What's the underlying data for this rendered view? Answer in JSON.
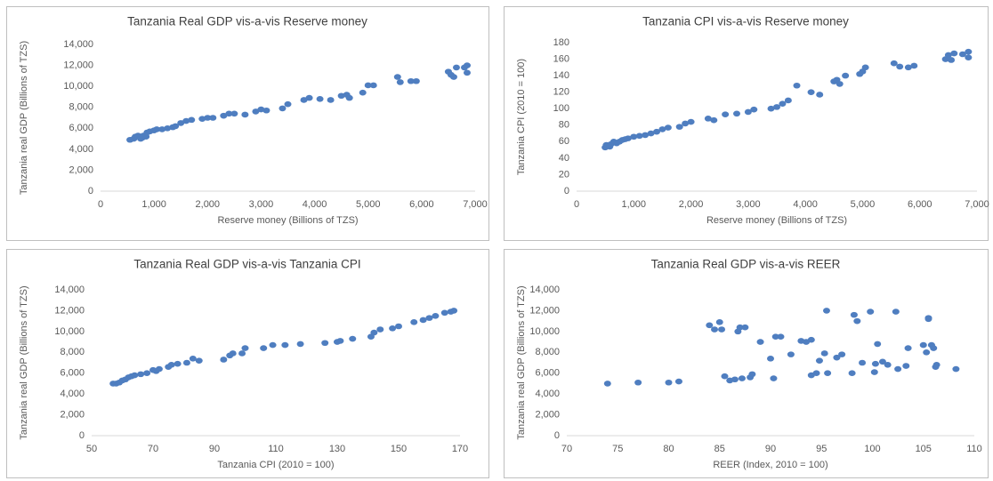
{
  "chart_data": [
    {
      "type": "scatter",
      "title": "Tanzania Real GDP vis-a-vis Reserve money",
      "x_label": "Reserve money (Billions of TZS)",
      "y_label": "Tanzania real GDP (Billions of TZS)",
      "xlim": [
        0,
        7000
      ],
      "ylim": [
        0,
        14000
      ],
      "xticks": [
        0,
        {
          "value": 1000,
          "label": "1,000"
        },
        {
          "value": 2000,
          "label": "2,000"
        },
        {
          "value": 3000,
          "label": "3,000"
        },
        {
          "value": 4000,
          "label": "4,000"
        },
        {
          "value": 5000,
          "label": "5,000"
        },
        {
          "value": 6000,
          "label": "6,000"
        },
        {
          "value": 7000,
          "label": "7,000"
        }
      ],
      "yticks": [
        0,
        {
          "value": 2000,
          "label": "2,000"
        },
        {
          "value": 4000,
          "label": "4,000"
        },
        {
          "value": 6000,
          "label": "6,000"
        },
        {
          "value": 8000,
          "label": "8,000"
        },
        {
          "value": 10000,
          "label": "10,000"
        },
        {
          "value": 12000,
          "label": "12,000"
        },
        {
          "value": 14000,
          "label": "14,000"
        }
      ],
      "series": [
        {
          "color": "#4f7ec0",
          "x": [
            550,
            620,
            650,
            700,
            750,
            780,
            800,
            850,
            870,
            920,
            1000,
            1050,
            1150,
            1250,
            1350,
            1400,
            1500,
            1600,
            1700,
            1900,
            2000,
            2100,
            2300,
            2400,
            2500,
            2700,
            2900,
            3000,
            3100,
            3400,
            3500,
            3800,
            3900,
            4100,
            4300,
            4500,
            4600,
            4650,
            4900,
            5000,
            5100,
            5550,
            5600,
            5800,
            5900,
            6500,
            6550,
            6600,
            6650,
            6800,
            6850,
            6850
          ],
          "values": [
            4900,
            5000,
            5200,
            5300,
            5000,
            5100,
            5300,
            5200,
            5600,
            5700,
            5800,
            5900,
            5900,
            6000,
            6100,
            6200,
            6500,
            6700,
            6800,
            6900,
            7000,
            7000,
            7200,
            7400,
            7400,
            7300,
            7600,
            7800,
            7700,
            7900,
            8300,
            8700,
            8900,
            8800,
            8700,
            9100,
            9200,
            8900,
            9400,
            10100,
            10100,
            10900,
            10400,
            10500,
            10500,
            11400,
            11100,
            10900,
            11800,
            11800,
            12000,
            11300
          ]
        }
      ]
    },
    {
      "type": "scatter",
      "title": "Tanzania CPI vis-a-vis Reserve money",
      "x_label": "Reserve money (Billions of TZS)",
      "y_label": "Tanzania CPI (2010 = 100)",
      "xlim": [
        0,
        7000
      ],
      "ylim": [
        0,
        180
      ],
      "xticks": [
        0,
        {
          "value": 1000,
          "label": "1,000"
        },
        {
          "value": 2000,
          "label": "2,000"
        },
        {
          "value": 3000,
          "label": "3,000"
        },
        {
          "value": 4000,
          "label": "4,000"
        },
        {
          "value": 5000,
          "label": "5,000"
        },
        {
          "value": 6000,
          "label": "6,000"
        },
        {
          "value": 7000,
          "label": "7,000"
        }
      ],
      "yticks": [
        0,
        20,
        40,
        60,
        80,
        100,
        120,
        140,
        160,
        180
      ],
      "series": [
        {
          "color": "#4f7ec0",
          "x": [
            500,
            520,
            550,
            580,
            600,
            650,
            700,
            750,
            800,
            850,
            900,
            1000,
            1100,
            1200,
            1300,
            1400,
            1500,
            1600,
            1800,
            1900,
            2000,
            2300,
            2400,
            2600,
            2800,
            3000,
            3100,
            3400,
            3500,
            3600,
            3700,
            3850,
            4100,
            4250,
            4500,
            4550,
            4600,
            4700,
            4950,
            5000,
            5050,
            5550,
            5650,
            5800,
            5900,
            6450,
            6500,
            6550,
            6600,
            6750,
            6850,
            6850
          ],
          "values": [
            53,
            56,
            55,
            54,
            57,
            60,
            58,
            60,
            62,
            63,
            64,
            66,
            67,
            68,
            70,
            72,
            75,
            77,
            78,
            82,
            84,
            88,
            86,
            93,
            94,
            96,
            99,
            100,
            102,
            106,
            110,
            128,
            120,
            117,
            133,
            135,
            130,
            140,
            142,
            145,
            150,
            155,
            151,
            150,
            152,
            160,
            165,
            159,
            167,
            166,
            169,
            162
          ]
        }
      ]
    },
    {
      "type": "scatter",
      "title": "Tanzania Real GDP vis-a-vis Tanzania CPI",
      "x_label": "Tanzania CPI (2010 = 100)",
      "y_label": "Tanzania real GDP (Billions of TZS)",
      "xlim": [
        50,
        170
      ],
      "ylim": [
        0,
        14000
      ],
      "xticks": [
        50,
        70,
        90,
        110,
        130,
        150,
        170
      ],
      "yticks": [
        0,
        {
          "value": 2000,
          "label": "2,000"
        },
        {
          "value": 4000,
          "label": "4,000"
        },
        {
          "value": 6000,
          "label": "6,000"
        },
        {
          "value": 8000,
          "label": "8,000"
        },
        {
          "value": 10000,
          "label": "10,000"
        },
        {
          "value": 12000,
          "label": "12,000"
        },
        {
          "value": 14000,
          "label": "14,000"
        }
      ],
      "series": [
        {
          "color": "#4f7ec0",
          "x": [
            57,
            58,
            59,
            60,
            61,
            62,
            63,
            64,
            66,
            68,
            70,
            71,
            72,
            75,
            76,
            78,
            81,
            83,
            85,
            93,
            95,
            96,
            99,
            100,
            106,
            109,
            113,
            118,
            126,
            130,
            131,
            135,
            141,
            142,
            144,
            148,
            150,
            155,
            158,
            160,
            162,
            165,
            167,
            168
          ],
          "values": [
            5000,
            5000,
            5100,
            5300,
            5400,
            5600,
            5700,
            5800,
            5900,
            6000,
            6300,
            6200,
            6400,
            6600,
            6800,
            6900,
            7000,
            7400,
            7200,
            7300,
            7700,
            7900,
            7900,
            8400,
            8400,
            8700,
            8700,
            8800,
            8900,
            9000,
            9100,
            9300,
            9500,
            9900,
            10200,
            10300,
            10500,
            10900,
            11100,
            11300,
            11500,
            11800,
            11900,
            12000
          ]
        }
      ]
    },
    {
      "type": "scatter",
      "title": "Tanzania Real GDP vis-a-vis REER",
      "x_label": "REER (Index, 2010 = 100)",
      "y_label": "Tanzania real GDP (Billions of TZS)",
      "xlim": [
        70,
        110
      ],
      "ylim": [
        0,
        14000
      ],
      "xticks": [
        70,
        75,
        80,
        85,
        90,
        95,
        100,
        105,
        110
      ],
      "yticks": [
        0,
        {
          "value": 2000,
          "label": "2,000"
        },
        {
          "value": 4000,
          "label": "4,000"
        },
        {
          "value": 6000,
          "label": "6,000"
        },
        {
          "value": 8000,
          "label": "8,000"
        },
        {
          "value": 10000,
          "label": "10,000"
        },
        {
          "value": 12000,
          "label": "12,000"
        },
        {
          "value": 14000,
          "label": "14,000"
        }
      ],
      "series": [
        {
          "color": "#4f7ec0",
          "x": [
            74,
            77,
            80,
            81,
            84,
            84.5,
            85,
            85.2,
            85.5,
            86,
            86.5,
            86.8,
            87,
            87.5,
            87.2,
            88,
            88.2,
            89,
            90,
            90.3,
            90.5,
            91,
            92,
            93,
            93.5,
            94,
            94,
            94.5,
            94.8,
            95.3,
            95.5,
            95.6,
            96.5,
            97,
            98,
            98.2,
            98.5,
            99,
            99.8,
            100.2,
            100.5,
            100.3,
            101,
            101.5,
            102.3,
            102.5,
            103.3,
            103.5,
            105,
            105.3,
            105.5,
            105.5,
            105.8,
            106,
            106.2,
            106.3,
            108.2
          ],
          "values": [
            5000,
            5100,
            5100,
            5200,
            10600,
            10200,
            10900,
            10200,
            5700,
            5300,
            5400,
            10000,
            10400,
            10400,
            5500,
            5600,
            5900,
            9000,
            7400,
            5500,
            9500,
            9500,
            7800,
            9100,
            9000,
            9200,
            5800,
            6000,
            7200,
            7900,
            12000,
            6000,
            7500,
            7800,
            6000,
            11600,
            11000,
            7000,
            11900,
            6100,
            8800,
            6900,
            7100,
            6800,
            11900,
            6400,
            6700,
            8400,
            8700,
            8000,
            11300,
            11200,
            8700,
            8400,
            6600,
            6800,
            6400
          ]
        }
      ]
    }
  ]
}
